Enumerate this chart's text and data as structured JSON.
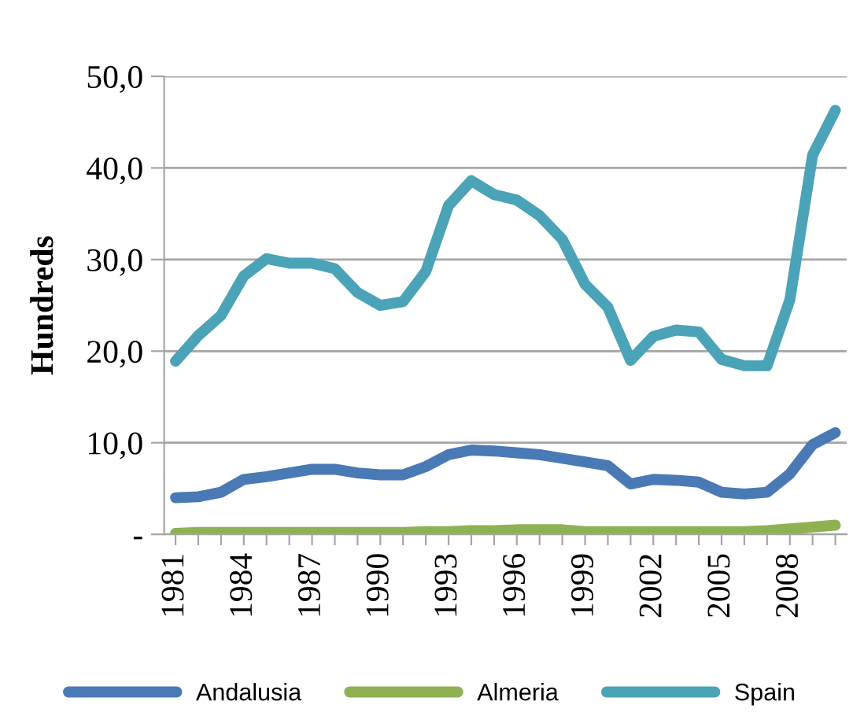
{
  "chart_data": {
    "type": "line",
    "ylabel": "Hundreds",
    "categories": [
      "1981",
      null,
      null,
      "1984",
      null,
      null,
      "1987",
      null,
      null,
      "1990",
      null,
      null,
      "1993",
      null,
      null,
      "1996",
      null,
      null,
      "1999",
      null,
      null,
      "2002",
      null,
      null,
      "2005",
      null,
      null,
      "2008",
      null,
      null
    ],
    "series": [
      {
        "name": "Andalusia",
        "color": "#4a7ab5",
        "values": [
          4.0,
          4.1,
          4.6,
          6.0,
          6.3,
          6.7,
          7.1,
          7.1,
          6.7,
          6.5,
          6.5,
          7.4,
          8.7,
          9.2,
          9.1,
          8.9,
          8.7,
          8.3,
          7.9,
          7.5,
          5.5,
          6.0,
          5.9,
          5.7,
          4.6,
          4.4,
          4.6,
          6.6,
          9.8,
          11.1
        ]
      },
      {
        "name": "Almeria",
        "color": "#8fb153",
        "values": [
          0.1,
          0.2,
          0.2,
          0.2,
          0.2,
          0.2,
          0.2,
          0.2,
          0.2,
          0.2,
          0.2,
          0.3,
          0.3,
          0.4,
          0.4,
          0.5,
          0.5,
          0.5,
          0.3,
          0.3,
          0.3,
          0.3,
          0.3,
          0.3,
          0.3,
          0.3,
          0.4,
          0.6,
          0.8,
          1.0
        ]
      },
      {
        "name": "Spain",
        "color": "#4ba3b8",
        "values": [
          18.9,
          21.7,
          23.9,
          28.2,
          30.1,
          29.6,
          29.6,
          29.0,
          26.4,
          25.0,
          25.4,
          28.7,
          35.9,
          38.6,
          37.1,
          36.5,
          34.8,
          32.2,
          27.3,
          24.8,
          19.0,
          21.6,
          22.3,
          22.1,
          19.1,
          18.4,
          18.4,
          25.6,
          41.4,
          46.3
        ]
      }
    ],
    "ylim": [
      0,
      50
    ],
    "yticks": [
      {
        "value": 0,
        "label": "-"
      },
      {
        "value": 10,
        "label": "10,0"
      },
      {
        "value": 20,
        "label": "20,0"
      },
      {
        "value": 30,
        "label": "30,0"
      },
      {
        "value": 40,
        "label": "40,0"
      },
      {
        "value": 50,
        "label": "50,0"
      }
    ],
    "grid": "y",
    "legend": "bottom",
    "marker": "none",
    "line_style": "solid"
  }
}
